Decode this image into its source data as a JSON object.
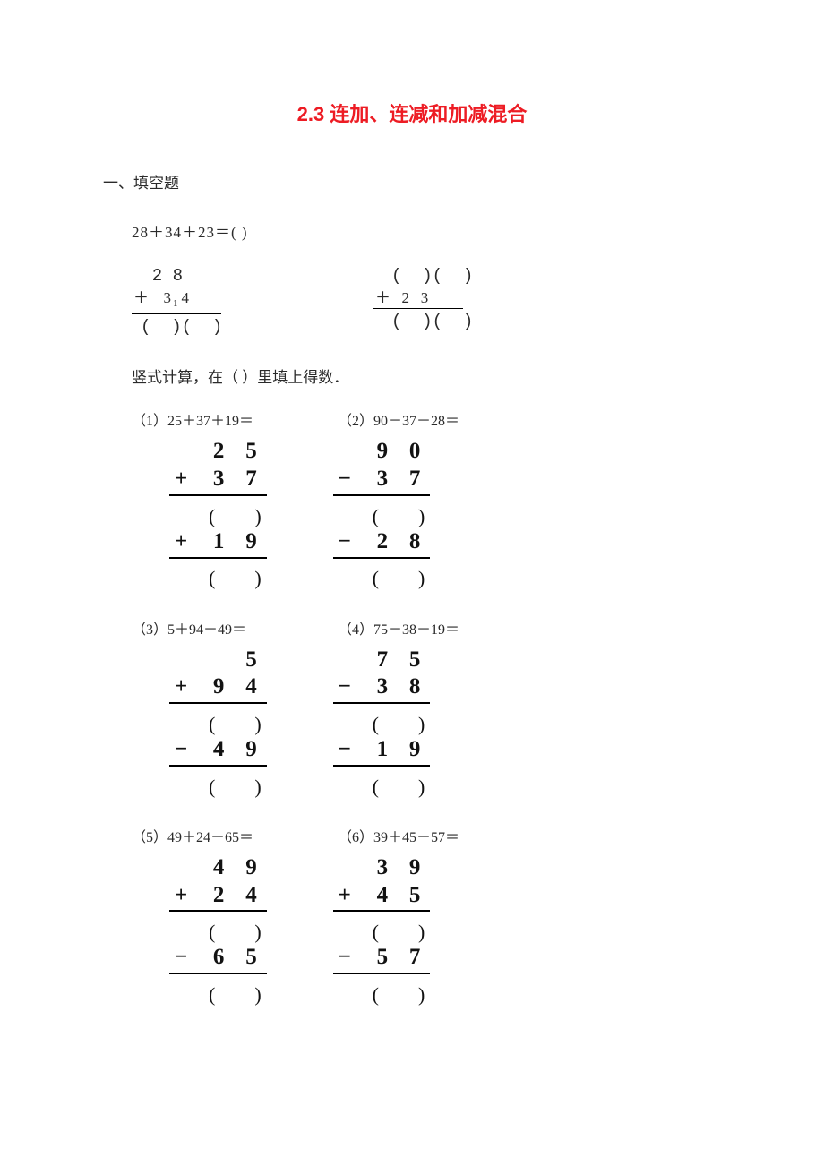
{
  "title": "2.3 连加、连减和加减混合",
  "section_label": "一、填空题",
  "q1": {
    "expression": "28＋34＋23＝(  )",
    "left": {
      "row1": "  2 8",
      "op": "＋",
      "a": "3",
      "carry": "1",
      "b": "4",
      "res": "(  )(  )"
    },
    "right": {
      "top": "(  )(  )",
      "op": "＋",
      "num": "2   3",
      "res": "(  )(  )"
    }
  },
  "q2": {
    "instruction": "竖式计算，在（ ）里填上得数．",
    "items": [
      {
        "label_a": "（1）25＋37＋19＝",
        "label_b": "（2）90－37－28＝",
        "a": {
          "r1": [
            "",
            "2",
            "5"
          ],
          "r2": [
            "+",
            "3",
            "7"
          ],
          "r3": [
            "+",
            "1",
            "9"
          ]
        },
        "b": {
          "r1": [
            "",
            "9",
            "0"
          ],
          "r2": [
            "−",
            "3",
            "7"
          ],
          "r3": [
            "−",
            "2",
            "8"
          ]
        }
      },
      {
        "label_a": "（3）5＋94－49＝",
        "label_b": "（4）75－38－19＝",
        "a": {
          "r1": [
            "",
            "",
            "5"
          ],
          "r2": [
            "+",
            "9",
            "4"
          ],
          "r3": [
            "−",
            "4",
            "9"
          ]
        },
        "b": {
          "r1": [
            "",
            "7",
            "5"
          ],
          "r2": [
            "−",
            "3",
            "8"
          ],
          "r3": [
            "−",
            "1",
            "9"
          ]
        }
      },
      {
        "label_a": "（5）49＋24－65＝",
        "label_b": "（6）39＋45－57＝",
        "a": {
          "r1": [
            "",
            "4",
            "9"
          ],
          "r2": [
            "+",
            "2",
            "4"
          ],
          "r3": [
            "−",
            "6",
            "5"
          ]
        },
        "b": {
          "r1": [
            "",
            "3",
            "9"
          ],
          "r2": [
            "+",
            "4",
            "5"
          ],
          "r3": [
            "−",
            "5",
            "7"
          ]
        }
      }
    ]
  }
}
